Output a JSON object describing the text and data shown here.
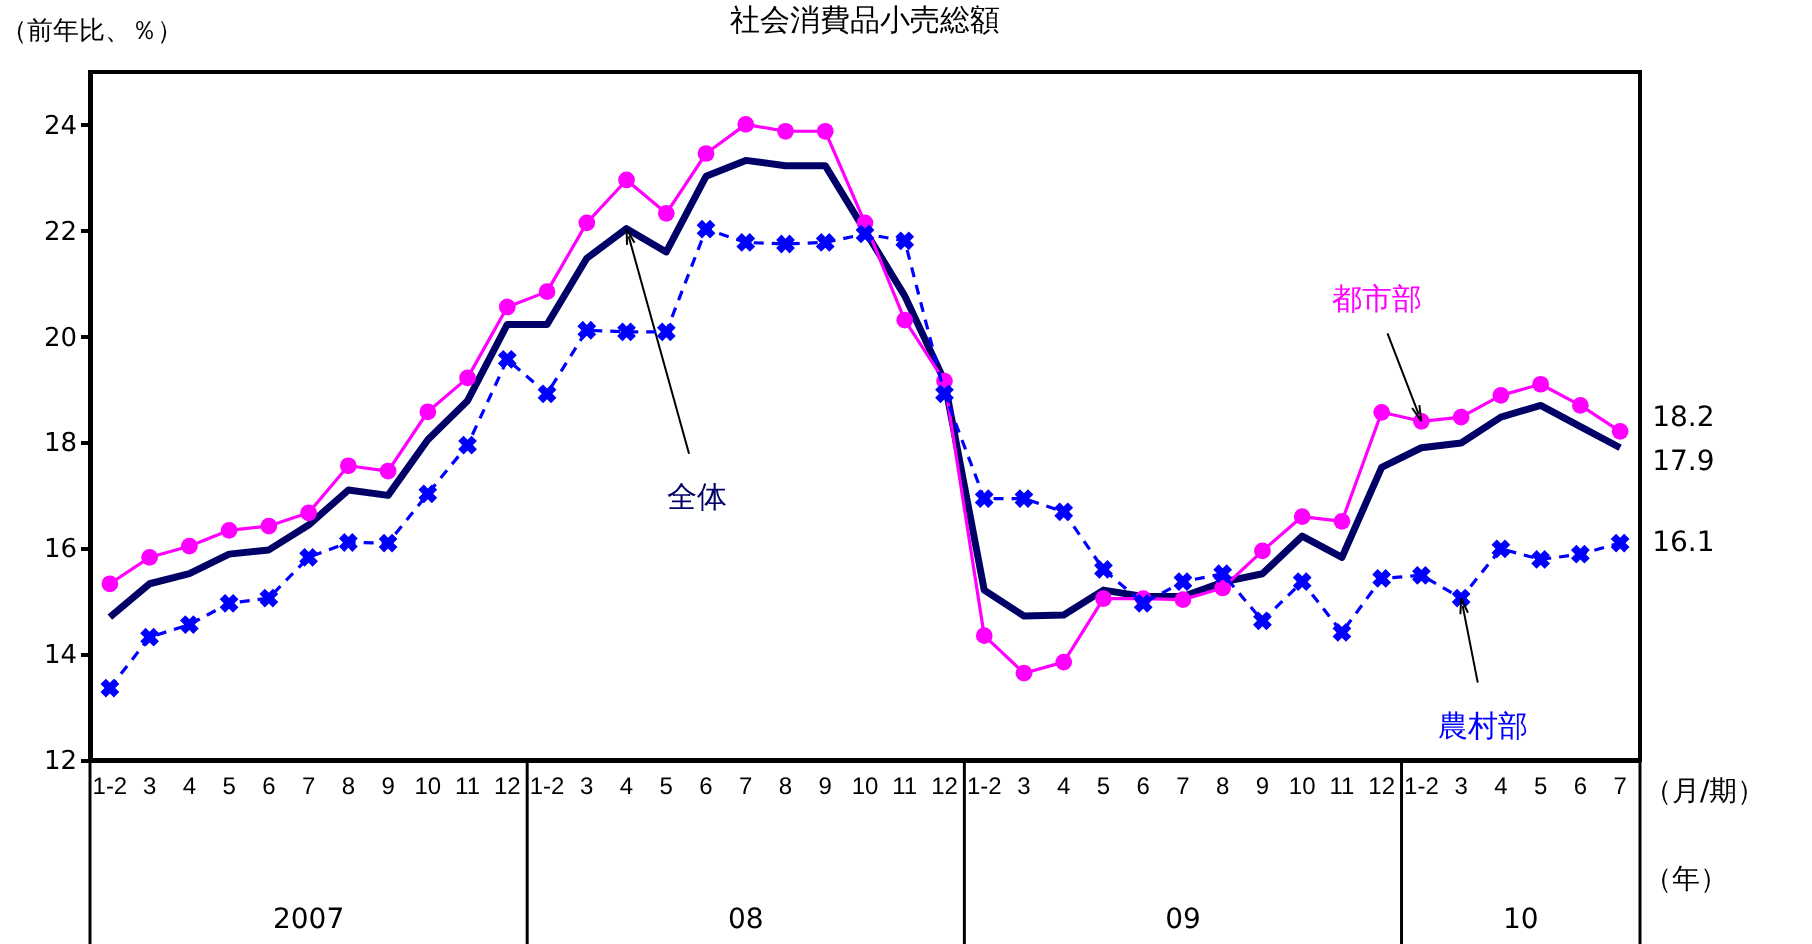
{
  "chart_data": {
    "type": "line",
    "title": "社会消費品小売総額",
    "ylabel": "（前年比、％）",
    "xlabel": "（月/期）",
    "categories": [
      "1-2",
      "3",
      "4",
      "5",
      "6",
      "7",
      "8",
      "9",
      "10",
      "11",
      "12",
      "1-2",
      "3",
      "4",
      "5",
      "6",
      "7",
      "8",
      "9",
      "10",
      "11",
      "12",
      "1-2",
      "3",
      "4",
      "5",
      "6",
      "7",
      "8",
      "9",
      "10",
      "11",
      "12",
      "1-2",
      "3",
      "4",
      "5",
      "6",
      "7"
    ],
    "series": [
      {
        "name": "全体",
        "color": "#000066",
        "line_style": "solid",
        "marker": "none",
        "values": [
          14.7,
          15.33,
          15.52,
          15.89,
          15.97,
          16.44,
          17.1,
          17.0,
          18.05,
          18.79,
          20.23,
          20.23,
          21.48,
          22.04,
          21.6,
          23.03,
          23.33,
          23.23,
          23.23,
          22.0,
          20.77,
          19.16,
          15.21,
          14.72,
          14.74,
          15.21,
          15.09,
          15.09,
          15.36,
          15.52,
          16.23,
          15.83,
          17.53,
          17.9,
          17.99,
          18.48,
          18.7,
          18.3,
          17.9
        ],
        "value_labels": [
          null,
          null,
          null,
          null,
          null,
          null,
          null,
          null,
          null,
          null,
          null,
          null,
          null,
          null,
          null,
          null,
          null,
          null,
          null,
          null,
          null,
          null,
          null,
          null,
          null,
          null,
          null,
          null,
          null,
          null,
          null,
          null,
          null,
          null,
          null,
          null,
          null,
          null,
          "17.9"
        ]
      },
      {
        "name": "都市部",
        "color": "#ff00ff",
        "line_style": "solid",
        "marker": "circle",
        "values": [
          15.33,
          15.83,
          16.04,
          16.34,
          16.42,
          16.67,
          17.56,
          17.46,
          18.58,
          19.22,
          20.56,
          20.85,
          22.15,
          22.96,
          22.33,
          23.46,
          24.01,
          23.88,
          23.88,
          22.15,
          20.31,
          19.16,
          14.35,
          13.64,
          13.85,
          15.05,
          15.05,
          15.03,
          15.25,
          15.95,
          16.6,
          16.51,
          18.57,
          18.4,
          18.48,
          18.89,
          19.1,
          18.7,
          18.21
        ],
        "value_labels": [
          null,
          null,
          null,
          null,
          null,
          null,
          null,
          null,
          null,
          null,
          null,
          null,
          null,
          null,
          null,
          null,
          null,
          null,
          null,
          null,
          null,
          null,
          null,
          null,
          null,
          null,
          null,
          null,
          null,
          null,
          null,
          null,
          null,
          null,
          null,
          null,
          null,
          null,
          "18.2"
        ]
      },
      {
        "name": "農村部",
        "color": "#0000ff",
        "line_style": "dashed",
        "marker": "cross",
        "values": [
          13.36,
          14.32,
          14.56,
          14.96,
          15.06,
          15.83,
          16.11,
          16.1,
          17.03,
          17.95,
          19.57,
          18.92,
          20.12,
          20.09,
          20.09,
          22.03,
          21.78,
          21.75,
          21.78,
          21.94,
          21.81,
          18.92,
          16.94,
          16.94,
          16.69,
          15.6,
          14.96,
          15.37,
          15.52,
          14.63,
          15.37,
          14.41,
          15.43,
          15.49,
          15.06,
          15.99,
          15.79,
          15.89,
          16.1
        ],
        "value_labels": [
          null,
          null,
          null,
          null,
          null,
          null,
          null,
          null,
          null,
          null,
          null,
          null,
          null,
          null,
          null,
          null,
          null,
          null,
          null,
          null,
          null,
          null,
          null,
          null,
          null,
          null,
          null,
          null,
          null,
          null,
          null,
          null,
          null,
          null,
          null,
          null,
          null,
          null,
          "16.1"
        ]
      }
    ],
    "ylim": [
      12,
      25
    ],
    "yticks": [
      12,
      14,
      16,
      18,
      20,
      22,
      24
    ],
    "grid": false,
    "legend": false,
    "annotations": [
      "2007",
      "08",
      "09",
      "10",
      "（年）"
    ]
  }
}
